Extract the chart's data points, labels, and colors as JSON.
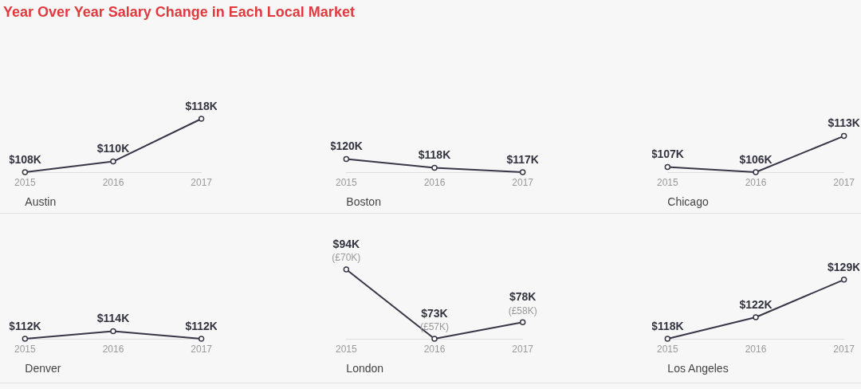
{
  "chart_data": [
    {
      "type": "line",
      "title": "Year Over Year Salary Change in Each Local Market",
      "xlabel": "Austin",
      "categories": [
        "2015",
        "2016",
        "2017"
      ],
      "values": [
        108,
        110,
        118
      ],
      "value_labels": [
        "$108K",
        "$110K",
        "$118K"
      ],
      "color": "#3a3547",
      "marker": "circle"
    },
    {
      "type": "line",
      "xlabel": "Boston",
      "categories": [
        "2015",
        "2016",
        "2017"
      ],
      "values": [
        120,
        118,
        117
      ],
      "value_labels": [
        "$120K",
        "$118K",
        "$117K"
      ],
      "color": "#3a3547",
      "marker": "circle"
    },
    {
      "type": "line",
      "xlabel": "Chicago",
      "categories": [
        "2015",
        "2016",
        "2017"
      ],
      "values": [
        107,
        106,
        113
      ],
      "value_labels": [
        "$107K",
        "$106K",
        "$113K"
      ],
      "color": "#3a3547",
      "marker": "circle"
    },
    {
      "type": "line",
      "xlabel": "Denver",
      "categories": [
        "2015",
        "2016",
        "2017"
      ],
      "values": [
        112,
        114,
        112
      ],
      "value_labels": [
        "$112K",
        "$114K",
        "$112K"
      ],
      "color": "#3a3547",
      "marker": "circle"
    },
    {
      "type": "line",
      "xlabel": "London",
      "categories": [
        "2015",
        "2016",
        "2017"
      ],
      "values": [
        94,
        73,
        78
      ],
      "value_labels": [
        "$94K",
        "$73K",
        "$78K"
      ],
      "color": "#3a3547",
      "marker": "circle",
      "annotations": [
        {
          "text": "(£70K)",
          "x": "2015",
          "y": 94
        },
        {
          "text": "(£57K)",
          "x": "2016",
          "y": 73
        },
        {
          "text": "(£58K)",
          "x": "2017",
          "y": 78
        }
      ]
    },
    {
      "type": "line",
      "xlabel": "Los Angeles",
      "categories": [
        "2015",
        "2016",
        "2017"
      ],
      "values": [
        118,
        122,
        129
      ],
      "value_labels": [
        "$118K",
        "$122K",
        "$129K"
      ],
      "color": "#3a3547",
      "marker": "circle"
    }
  ]
}
